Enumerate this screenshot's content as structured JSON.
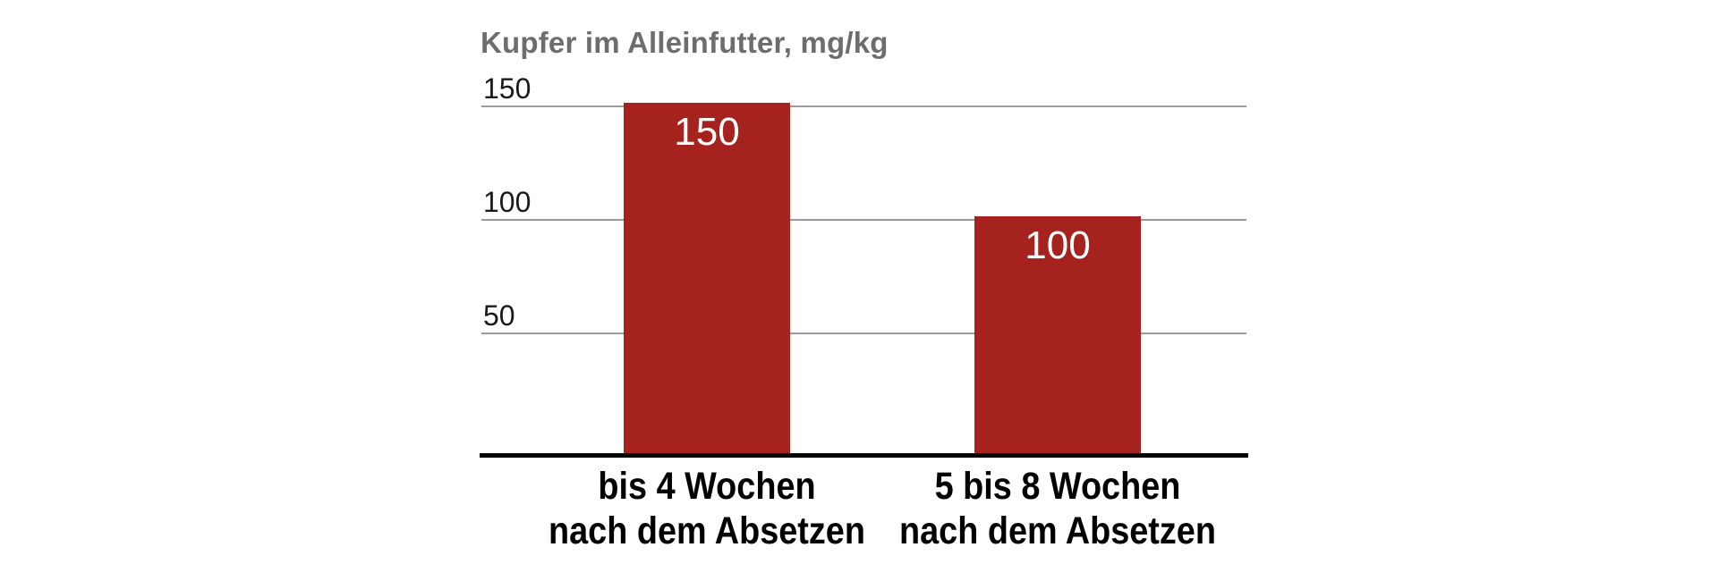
{
  "chart_data": {
    "type": "bar",
    "title": "Kupfer im Alleinfutter, mg/kg",
    "categories": [
      {
        "lines": [
          "bis 4 Wochen",
          "nach dem Absetzen"
        ]
      },
      {
        "lines": [
          "5 bis 8 Wochen",
          "nach dem Absetzen"
        ]
      }
    ],
    "values": [
      150,
      100
    ],
    "value_labels": [
      "150",
      "100"
    ],
    "yticks": [
      {
        "label": "150",
        "value": 150
      },
      {
        "label": "100",
        "value": 100
      },
      {
        "label": "50",
        "value": 50
      }
    ],
    "ylim": [
      0,
      150
    ],
    "xlabel": "",
    "ylabel": "Kupfer im Alleinfutter, mg/kg",
    "grid": true,
    "legend_position": "none",
    "colors": {
      "bar": "#a6221e",
      "title": "#6d6d6f",
      "tick_label": "#1a1a1a",
      "gridline": "#9a9a9a",
      "axis_line": "#000000",
      "value_label": "#ffffff",
      "category_label": "#000000",
      "background": "#ffffff"
    }
  }
}
